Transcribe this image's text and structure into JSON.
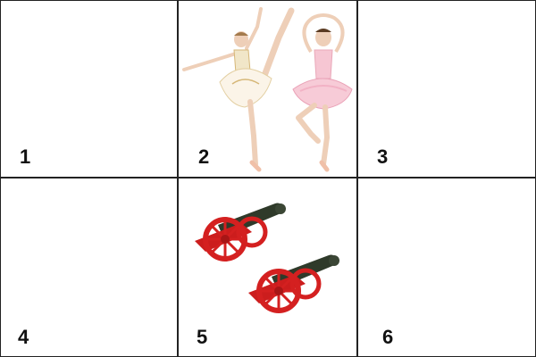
{
  "cells": [
    {
      "number": "1",
      "content": ""
    },
    {
      "number": "2",
      "content": "ballerina-illustration"
    },
    {
      "number": "3",
      "content": ""
    },
    {
      "number": "4",
      "content": ""
    },
    {
      "number": "5",
      "content": "cannon-illustration"
    },
    {
      "number": "6",
      "content": ""
    }
  ],
  "colors": {
    "grid_lines": "#222222",
    "cannon_wheel": "#d42020",
    "cannon_barrel": "#2f3a2a",
    "tutu_pink": "#f6c6d3",
    "tutu_white": "#fbf4e8"
  }
}
